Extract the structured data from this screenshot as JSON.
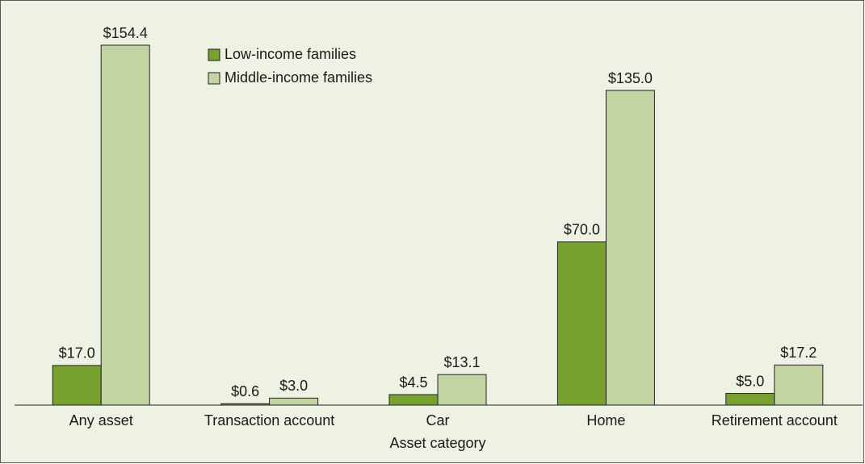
{
  "chart_data": {
    "type": "bar",
    "xlabel": "Asset category",
    "categories": [
      "Any asset",
      "Transaction account",
      "Car",
      "Home",
      "Retirement account"
    ],
    "series": [
      {
        "name": "Low-income families",
        "color": "#77a22f",
        "values": [
          17.0,
          0.6,
          4.5,
          70.0,
          5.0
        ],
        "value_labels": [
          "$17.0",
          "$0.6",
          "$4.5",
          "$70.0",
          "$5.0"
        ]
      },
      {
        "name": "Middle-income families",
        "color": "#c3d4a3",
        "values": [
          154.4,
          3.0,
          13.1,
          135.0,
          17.2
        ],
        "value_labels": [
          "$154.4",
          "$3.0",
          "$13.1",
          "$135.0",
          "$17.2"
        ]
      }
    ],
    "legend": "upper left"
  }
}
